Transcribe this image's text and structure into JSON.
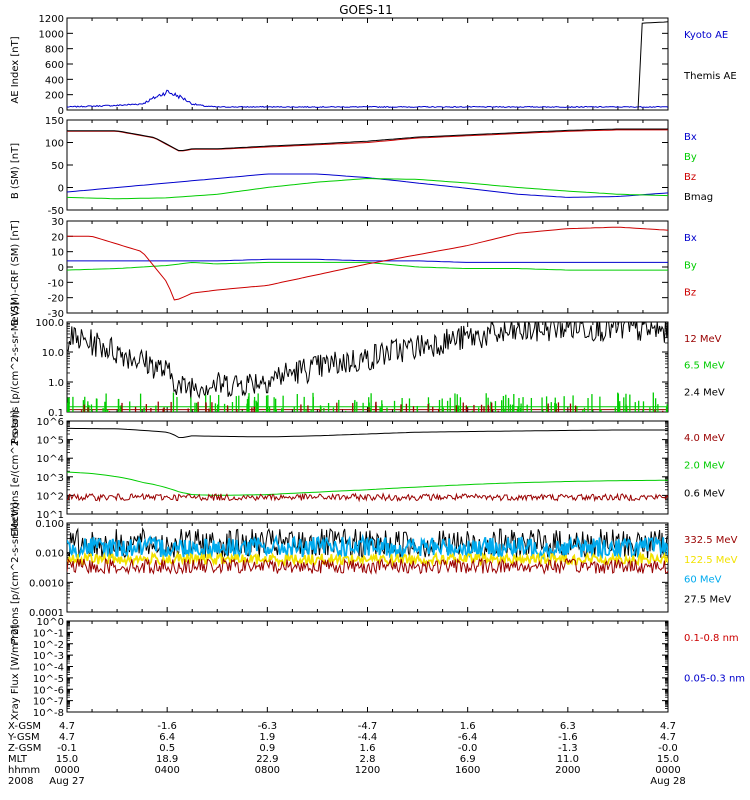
{
  "title": "GOES-11",
  "x_ticks": [
    "0000",
    "0400",
    "0800",
    "1200",
    "1600",
    "2000",
    "0000"
  ],
  "footer": {
    "rows": [
      {
        "label": "X-GSM",
        "values": [
          "4.7",
          "-1.6",
          "-6.3",
          "-4.7",
          "1.6",
          "6.3",
          "4.7"
        ]
      },
      {
        "label": "Y-GSM",
        "values": [
          "4.7",
          "6.4",
          "1.9",
          "-4.4",
          "-6.4",
          "-1.6",
          "4.7"
        ]
      },
      {
        "label": "Z-GSM",
        "values": [
          "-0.1",
          "0.5",
          "0.9",
          "1.6",
          "-0.0",
          "-1.3",
          "-0.0"
        ]
      },
      {
        "label": "MLT",
        "values": [
          "15.0",
          "18.9",
          "22.9",
          "2.8",
          "6.9",
          "11.0",
          "15.0"
        ]
      },
      {
        "label": "hhmm",
        "values": [
          "0000",
          "0400",
          "0800",
          "1200",
          "1600",
          "2000",
          "0000"
        ]
      },
      {
        "label": "2008",
        "values": [
          "Aug 27",
          "",
          "",
          "",
          "",
          "",
          "Aug 28"
        ]
      }
    ]
  },
  "chart_data": [
    {
      "type": "line",
      "ylabel": "AE Index [nT]",
      "ylim": [
        0,
        1200
      ],
      "ytick_labels": [
        "0",
        "200",
        "400",
        "600",
        "800",
        "1000",
        "1200"
      ],
      "legend": [
        {
          "name": "Kyoto AE",
          "color": "#0000cc"
        },
        {
          "name": "Themis AE",
          "color": "#000000"
        }
      ],
      "series": [
        {
          "name": "Kyoto AE",
          "color": "#0000cc",
          "x": [
            0,
            1,
            2,
            3,
            3.5,
            4,
            4.3,
            4.6,
            5,
            5.5,
            6,
            8,
            10,
            12,
            14,
            16,
            18,
            20,
            21,
            22,
            22.8
          ],
          "y": [
            40,
            50,
            60,
            80,
            160,
            240,
            200,
            160,
            80,
            50,
            40,
            40,
            40,
            40,
            40,
            40,
            40,
            40,
            40,
            40,
            40
          ]
        },
        {
          "name": "Themis AE",
          "color": "#000000",
          "x": [
            0,
            22.79,
            22.8,
            22.81,
            24
          ],
          "y": [
            0,
            0,
            0,
            1130,
            1150
          ]
        }
      ]
    },
    {
      "type": "line",
      "ylabel": "B (SM) [nT]",
      "ylim": [
        -50,
        150
      ],
      "ytick_labels": [
        "-50",
        "0",
        "50",
        "100",
        "150"
      ],
      "legend": [
        {
          "name": "Bx",
          "color": "#0000cc"
        },
        {
          "name": "By",
          "color": "#00cc00"
        },
        {
          "name": "Bz",
          "color": "#cc0000"
        },
        {
          "name": "Bmag",
          "color": "#000000"
        }
      ],
      "series": [
        {
          "name": "Bx",
          "color": "#0000cc",
          "x": [
            0,
            2,
            4,
            6,
            8,
            10,
            12,
            14,
            16,
            18,
            20,
            22,
            24
          ],
          "y": [
            -10,
            0,
            10,
            20,
            30,
            30,
            22,
            10,
            -2,
            -15,
            -22,
            -20,
            -12
          ]
        },
        {
          "name": "By",
          "color": "#00cc00",
          "x": [
            0,
            2,
            4,
            6,
            8,
            10,
            12,
            14,
            16,
            18,
            20,
            22,
            24
          ],
          "y": [
            -22,
            -25,
            -23,
            -15,
            0,
            12,
            20,
            18,
            10,
            0,
            -8,
            -15,
            -18
          ]
        },
        {
          "name": "Bz",
          "color": "#cc0000",
          "x": [
            0,
            2,
            3.5,
            4.5,
            5,
            6,
            8,
            10,
            12,
            14,
            16,
            18,
            20,
            22,
            24
          ],
          "y": [
            125,
            125,
            110,
            80,
            85,
            85,
            90,
            95,
            100,
            110,
            115,
            120,
            125,
            128,
            128
          ]
        },
        {
          "name": "Bmag",
          "color": "#000000",
          "x": [
            0,
            2,
            3.5,
            4.5,
            5,
            6,
            8,
            10,
            12,
            14,
            16,
            18,
            20,
            22,
            24
          ],
          "y": [
            126,
            126,
            111,
            81,
            86,
            86,
            92,
            97,
            103,
            112,
            117,
            122,
            127,
            130,
            130
          ]
        }
      ]
    },
    {
      "type": "line",
      "ylabel": "B (SM)-CRF (SM) [nT]",
      "ylim": [
        -30,
        30
      ],
      "ytick_labels": [
        "-30",
        "-20",
        "-10",
        "0",
        "10",
        "20",
        "30"
      ],
      "legend": [
        {
          "name": "Bx",
          "color": "#0000cc"
        },
        {
          "name": "By",
          "color": "#00cc00"
        },
        {
          "name": "Bz",
          "color": "#cc0000"
        }
      ],
      "series": [
        {
          "name": "Bx",
          "color": "#0000cc",
          "x": [
            0,
            2,
            4,
            6,
            8,
            10,
            12,
            14,
            16,
            18,
            20,
            22,
            24
          ],
          "y": [
            4,
            4,
            4,
            4,
            5,
            5,
            4,
            4,
            3,
            3,
            3,
            3,
            3
          ]
        },
        {
          "name": "By",
          "color": "#00cc00",
          "x": [
            0,
            2,
            4,
            5,
            6,
            8,
            10,
            12,
            14,
            16,
            18,
            20,
            22,
            24
          ],
          "y": [
            -2,
            -1,
            1,
            3,
            2,
            3,
            3,
            3,
            0,
            -1,
            -1,
            -2,
            -2,
            -2
          ]
        },
        {
          "name": "Bz",
          "color": "#cc0000",
          "x": [
            0,
            1,
            2,
            3,
            4,
            4.3,
            4.6,
            5,
            6,
            8,
            10,
            12,
            14,
            16,
            18,
            20,
            22,
            24
          ],
          "y": [
            20,
            20,
            15,
            10,
            -10,
            -22,
            -20,
            -17,
            -15,
            -12,
            -5,
            2,
            8,
            14,
            22,
            25,
            26,
            24
          ]
        }
      ]
    },
    {
      "type": "line",
      "ylabel": "Protons [p/(cm^2-s-sr-MeV)]",
      "yscale": "log",
      "ylim": [
        0.1,
        100
      ],
      "ytick_labels": [
        "0.1",
        "1.0",
        "10.0",
        "100.0"
      ],
      "legend": [
        {
          "name": "12 MeV",
          "color": "#990000"
        },
        {
          "name": "6.5 MeV",
          "color": "#00cc00"
        },
        {
          "name": "2.4 MeV",
          "color": "#000000"
        }
      ],
      "series": [
        {
          "name": "2.4 MeV",
          "color": "#000000",
          "x": [
            0,
            1,
            2,
            3,
            4,
            4.5,
            5,
            6,
            7,
            8,
            10,
            12,
            14,
            16,
            18,
            20,
            22,
            24
          ],
          "y": [
            30,
            20,
            10,
            5,
            2,
            0.6,
            0.8,
            0.8,
            0.9,
            1.2,
            3,
            6,
            15,
            30,
            45,
            70,
            60,
            50
          ]
        },
        {
          "name": "6.5 MeV",
          "color": "#00cc00",
          "x": [
            0,
            24
          ],
          "y": [
            0.15,
            0.15
          ]
        },
        {
          "name": "12 MeV",
          "color": "#990000",
          "x": [
            0,
            24
          ],
          "y": [
            0.12,
            0.12
          ]
        }
      ]
    },
    {
      "type": "line",
      "ylabel": "Electrons [e/(cm^2-s-sr)]",
      "yscale": "log",
      "ylim": [
        10,
        1000000
      ],
      "ytick_labels": [
        "10^1",
        "10^2",
        "10^3",
        "10^4",
        "10^5",
        "10^6"
      ],
      "legend": [
        {
          "name": "4.0 MeV",
          "color": "#990000"
        },
        {
          "name": "2.0 MeV",
          "color": "#00cc00"
        },
        {
          "name": "0.6 MeV",
          "color": "#000000"
        }
      ],
      "series": [
        {
          "name": "0.6 MeV",
          "color": "#000000",
          "x": [
            0,
            2,
            4,
            4.5,
            5,
            6,
            8,
            10,
            12,
            14,
            16,
            18,
            20,
            22,
            24
          ],
          "y": [
            400000,
            380000,
            250000,
            120000,
            160000,
            150000,
            140000,
            160000,
            200000,
            250000,
            270000,
            290000,
            310000,
            330000,
            330000
          ]
        },
        {
          "name": "2.0 MeV",
          "color": "#00cc00",
          "x": [
            0,
            1,
            2,
            3,
            4,
            4.5,
            5,
            6,
            8,
            10,
            12,
            14,
            16,
            18,
            20,
            22,
            24
          ],
          "y": [
            1800,
            1500,
            1000,
            500,
            250,
            150,
            110,
            100,
            110,
            150,
            200,
            280,
            380,
            480,
            560,
            620,
            650
          ]
        },
        {
          "name": "4.0 MeV",
          "color": "#990000",
          "x": [
            0,
            24
          ],
          "y": [
            80,
            80
          ]
        }
      ]
    },
    {
      "type": "line",
      "ylabel": "Protons [p/(cm^2-s-sr-MeV)]",
      "yscale": "log",
      "ylim": [
        0.0001,
        0.1
      ],
      "ytick_labels": [
        "0.0001",
        "0.0010",
        "0.010",
        "0.100"
      ],
      "legend": [
        {
          "name": "332.5 MeV",
          "color": "#990000"
        },
        {
          "name": "122.5 MeV",
          "color": "#f2e200"
        },
        {
          "name": "60 MeV",
          "color": "#00aaee"
        },
        {
          "name": "27.5 MeV",
          "color": "#000000"
        }
      ],
      "series": [
        {
          "name": "27.5 MeV",
          "color": "#000000",
          "x": [
            0,
            24
          ],
          "y": [
            0.02,
            0.02
          ]
        },
        {
          "name": "60 MeV",
          "color": "#00aaee",
          "x": [
            0,
            24
          ],
          "y": [
            0.015,
            0.015
          ]
        },
        {
          "name": "122.5 MeV",
          "color": "#f2e200",
          "x": [
            0,
            24
          ],
          "y": [
            0.006,
            0.006
          ]
        },
        {
          "name": "332.5 MeV",
          "color": "#990000",
          "x": [
            0,
            24
          ],
          "y": [
            0.0035,
            0.0035
          ]
        }
      ]
    },
    {
      "type": "line",
      "ylabel": "Xray Flux [W/m^2]",
      "yscale": "log",
      "ylim": [
        1e-08,
        1
      ],
      "ytick_labels": [
        "10^-8",
        "10^-7",
        "10^-6",
        "10^-5",
        "10^-4",
        "10^-3",
        "10^-2",
        "10^-1",
        "10^0"
      ],
      "legend": [
        {
          "name": "0.1-0.8 nm",
          "color": "#cc0000"
        },
        {
          "name": "0.05-0.3 nm",
          "color": "#0000cc"
        }
      ],
      "series": []
    }
  ]
}
